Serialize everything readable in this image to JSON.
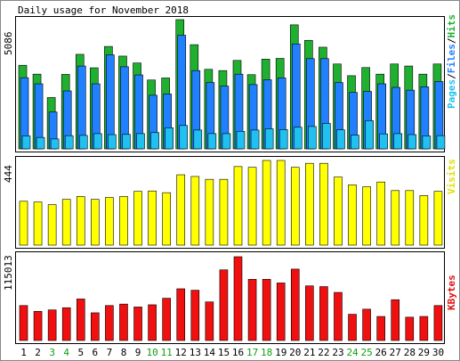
{
  "chart_data": [
    {
      "type": "bar",
      "title": "Daily usage for November 2018",
      "ylabel_max": "5086",
      "legend": {
        "pages": "Pages",
        "sep1": "/",
        "files": "Files",
        "sep2": "/",
        "hits": "Hits"
      },
      "categories": [
        "1",
        "2",
        "3",
        "4",
        "5",
        "6",
        "7",
        "8",
        "9",
        "10",
        "11",
        "12",
        "13",
        "14",
        "15",
        "16",
        "17",
        "18",
        "19",
        "20",
        "21",
        "22",
        "23",
        "24",
        "25",
        "26",
        "27",
        "28",
        "29",
        "30"
      ],
      "weekend_days": [
        "3",
        "4",
        "10",
        "11",
        "17",
        "18",
        "24",
        "25"
      ],
      "ylim": [
        0,
        5086
      ],
      "series": [
        {
          "name": "Hits",
          "color": "#20b030",
          "values": [
            3290,
            2940,
            2020,
            2930,
            3720,
            3190,
            4030,
            3650,
            3380,
            2710,
            2790,
            5086,
            4100,
            3130,
            3080,
            3480,
            2920,
            3530,
            3560,
            4880,
            4270,
            4000,
            3340,
            2880,
            3200,
            2940,
            3340,
            3260,
            2940,
            3340
          ]
        },
        {
          "name": "Files",
          "color": "#2080ff",
          "values": [
            2800,
            2560,
            1450,
            2280,
            3260,
            2560,
            3700,
            3230,
            2910,
            2110,
            2160,
            4470,
            3080,
            2610,
            2470,
            2940,
            2530,
            2720,
            2790,
            4130,
            3550,
            3550,
            2610,
            2220,
            2260,
            2560,
            2420,
            2310,
            2440,
            2650
          ]
        },
        {
          "name": "Pages",
          "color": "#20c0f0",
          "values": [
            510,
            450,
            390,
            520,
            530,
            600,
            560,
            570,
            600,
            640,
            830,
            920,
            740,
            600,
            600,
            690,
            740,
            790,
            760,
            850,
            880,
            1000,
            750,
            540,
            1110,
            590,
            600,
            560,
            510,
            520
          ]
        }
      ]
    },
    {
      "type": "bar",
      "ylabel_max": "444",
      "legend": "Visits",
      "categories": [
        "1",
        "2",
        "3",
        "4",
        "5",
        "6",
        "7",
        "8",
        "9",
        "10",
        "11",
        "12",
        "13",
        "14",
        "15",
        "16",
        "17",
        "18",
        "19",
        "20",
        "21",
        "22",
        "23",
        "24",
        "25",
        "26",
        "27",
        "28",
        "29",
        "30"
      ],
      "ylim": [
        0,
        444
      ],
      "series": [
        {
          "name": "Visits",
          "color": "#ffff00",
          "values": [
            230,
            226,
            212,
            240,
            255,
            240,
            250,
            255,
            282,
            284,
            275,
            369,
            360,
            345,
            345,
            412,
            408,
            444,
            444,
            408,
            429,
            429,
            357,
            316,
            306,
            331,
            286,
            286,
            260,
            282
          ]
        }
      ]
    },
    {
      "type": "bar",
      "ylabel_max": "115013",
      "legend": "KBytes",
      "categories": [
        "1",
        "2",
        "3",
        "4",
        "5",
        "6",
        "7",
        "8",
        "9",
        "10",
        "11",
        "12",
        "13",
        "14",
        "15",
        "16",
        "17",
        "18",
        "19",
        "20",
        "21",
        "22",
        "23",
        "24",
        "25",
        "26",
        "27",
        "28",
        "29",
        "30"
      ],
      "ylim": [
        0,
        115013
      ],
      "series": [
        {
          "name": "KBytes",
          "color": "#f01010",
          "values": [
            48000,
            40000,
            42000,
            45000,
            57000,
            38000,
            48000,
            50000,
            46000,
            49000,
            58000,
            71000,
            69000,
            53000,
            97000,
            115013,
            84000,
            84000,
            79000,
            98000,
            75000,
            74000,
            66000,
            36000,
            43000,
            33000,
            56000,
            32000,
            33000,
            48000
          ]
        }
      ]
    }
  ]
}
